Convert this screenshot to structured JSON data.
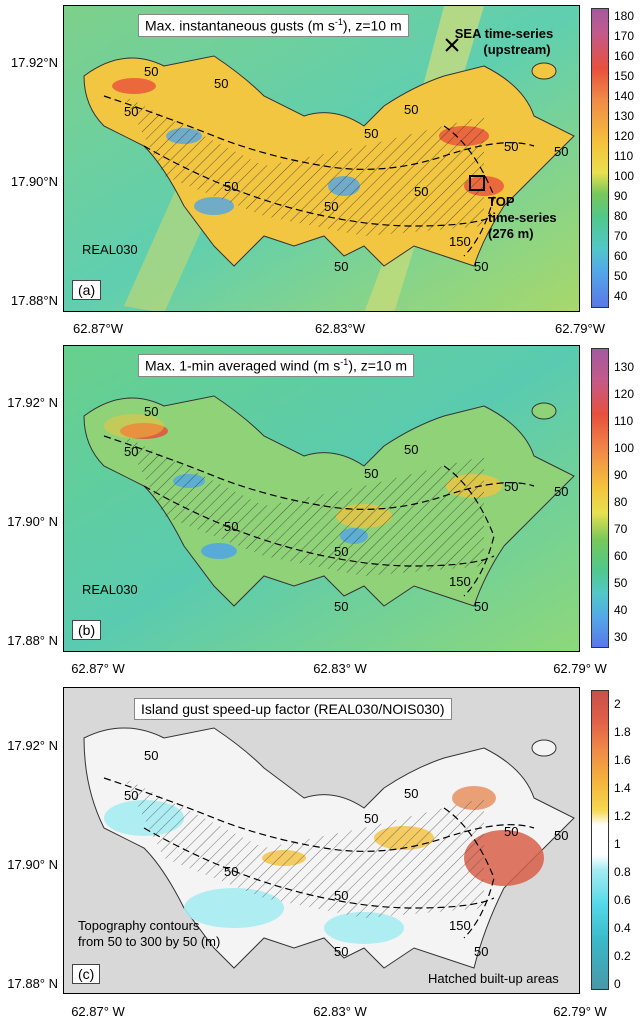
{
  "panels": [
    {
      "id": "a",
      "title": "Max. instantaneous gusts (m s",
      "title_sup": "-1",
      "title_end": "), z=10 m",
      "tag": "(a)",
      "run_label": "REAL030",
      "y_ticks": [
        "17.92°N",
        "17.90°N",
        "17.88°N"
      ],
      "x_ticks": [
        "62.87°W",
        "62.83°W",
        "62.79°W"
      ],
      "colorbar": [
        "180",
        "170",
        "160",
        "150",
        "140",
        "130",
        "120",
        "110",
        "100",
        "90",
        "80",
        "70",
        "60",
        "50",
        "40"
      ],
      "contour_labels": [
        "50",
        "50",
        "50",
        "50",
        "50",
        "50",
        "50",
        "50",
        "50",
        "50",
        "150",
        "50",
        "50"
      ],
      "sea_label_1": "SEA time-series",
      "sea_label_2": "(upstream)",
      "top_label_1": "TOP",
      "top_label_2": "time-series",
      "top_label_3": "(276 m)"
    },
    {
      "id": "b",
      "title": "Max. 1-min averaged wind (m s",
      "title_sup": "-1",
      "title_end": "), z=10 m",
      "tag": "(b)",
      "run_label": "REAL030",
      "y_ticks": [
        "17.92° N",
        "17.90° N",
        "17.88° N"
      ],
      "x_ticks": [
        "62.87° W",
        "62.83° W",
        "62.79° W"
      ],
      "colorbar": [
        "130",
        "120",
        "110",
        "100",
        "90",
        "80",
        "70",
        "60",
        "50",
        "40",
        "30"
      ],
      "contour_labels": [
        "50",
        "50",
        "50",
        "50",
        "50",
        "50",
        "50",
        "50",
        "150",
        "50",
        "50"
      ]
    },
    {
      "id": "c",
      "title": "Island gust speed-up factor (REAL030/NOIS030)",
      "tag": "(c)",
      "note_1": "Topography contours",
      "note_2": "from 50 to 300 by 50 (m)",
      "hatch_note": "Hatched built-up areas",
      "y_ticks": [
        "17.92° N",
        "17.90° N",
        "17.88° N"
      ],
      "x_ticks": [
        "62.87° W",
        "62.83° W",
        "62.79° W"
      ],
      "colorbar": [
        "2",
        "1.8",
        "1.6",
        "1.4",
        "1.2",
        "1",
        "0.8",
        "0.6",
        "0.4",
        "0.2",
        "0"
      ],
      "contour_labels": [
        "50",
        "50",
        "50",
        "50",
        "50",
        "50",
        "50",
        "50",
        "150",
        "50",
        "50"
      ]
    }
  ],
  "colors": {
    "sea_a": "#5fcfb0",
    "sea_c": "#d8d8d8",
    "land_high": "#e8503c",
    "land_mid": "#f5c23c",
    "land_low": "#4fa5e8"
  }
}
